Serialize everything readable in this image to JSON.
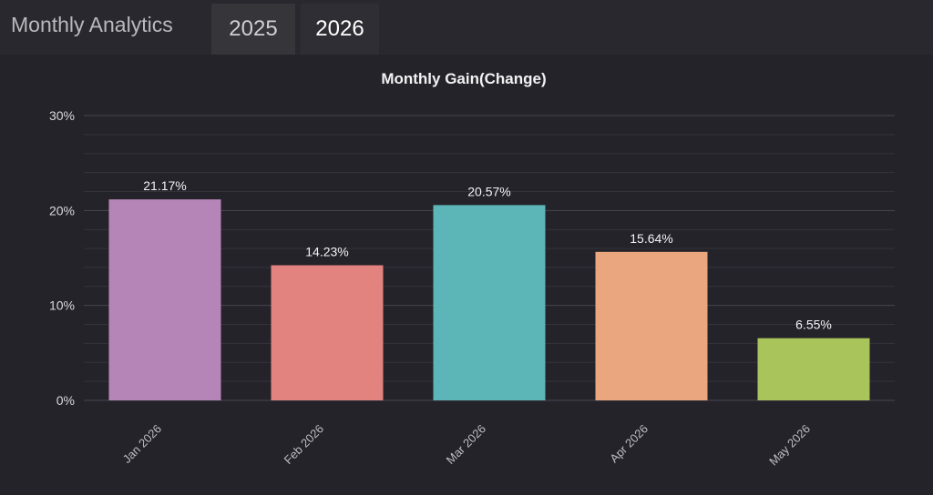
{
  "header": {
    "title": "Monthly Analytics",
    "tabs": [
      {
        "label": "2025",
        "active": false
      },
      {
        "label": "2026",
        "active": true
      }
    ]
  },
  "chart_data": {
    "type": "bar",
    "title": "Monthly Gain(Change)",
    "categories": [
      "Jan 2026",
      "Feb 2026",
      "Mar 2026",
      "Apr 2026",
      "May 2026"
    ],
    "values": [
      21.17,
      14.23,
      20.57,
      15.64,
      6.55
    ],
    "data_labels": [
      "21.17%",
      "14.23%",
      "20.57%",
      "15.64%",
      "6.55%"
    ],
    "colors": [
      "#b685b8",
      "#e2837f",
      "#5cb6b7",
      "#eaa77f",
      "#aac45c"
    ],
    "ylim": [
      0,
      30
    ],
    "yticks": [
      0,
      10,
      20,
      30
    ],
    "ytick_labels": [
      "0%",
      "10%",
      "20%",
      "30%"
    ],
    "xlabel": "",
    "ylabel": "",
    "grid": true,
    "legend": "none"
  }
}
